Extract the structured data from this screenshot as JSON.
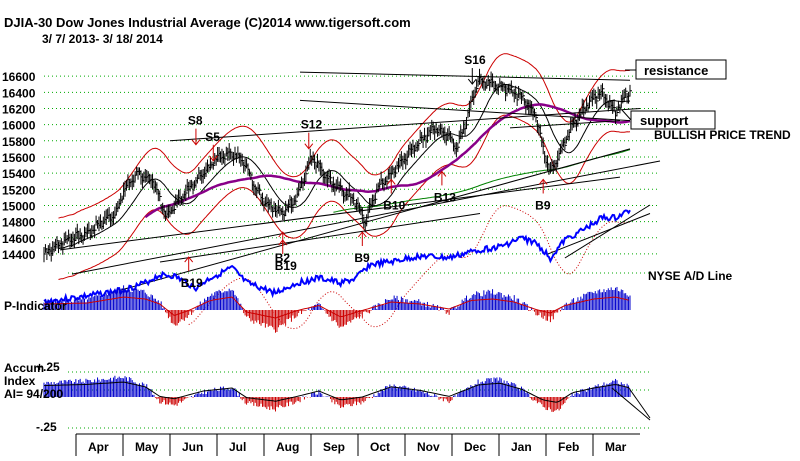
{
  "title": "DJIA-30  Dow Jones Industrial Average   (C)2014 www.tigersoft.com",
  "date_range": "3/ 7/ 2013- 3/ 18/ 2014",
  "colors": {
    "price": "#000000",
    "ad_line": "#0000ff",
    "bands": "#cc0000",
    "ma65": "#880088",
    "ma200": "#008000",
    "pos": "#0000cc",
    "neg": "#cc0000",
    "dotted": "#00aa00"
  },
  "chart_data": {
    "type": "bar",
    "price_axis": {
      "ticks": [
        "16600",
        "16400",
        "16200",
        "16000",
        "15800",
        "15600",
        "15400",
        "15200",
        "15000",
        "14800",
        "14600",
        "14400"
      ],
      "ylim": [
        14300,
        16800
      ]
    },
    "months": [
      "Apr",
      "May",
      "Jun",
      "Jul",
      "Aug",
      "Sep",
      "Oct",
      "Nov",
      "Dec",
      "Jan",
      "Feb",
      "Mar"
    ],
    "close_path": [
      [
        0,
        14400
      ],
      [
        10,
        14520
      ],
      [
        20,
        14600
      ],
      [
        30,
        14650
      ],
      [
        40,
        14800
      ],
      [
        50,
        14900
      ],
      [
        55,
        15200
      ],
      [
        65,
        15400
      ],
      [
        75,
        15300
      ],
      [
        85,
        14850
      ],
      [
        90,
        15000
      ],
      [
        100,
        15200
      ],
      [
        110,
        15400
      ],
      [
        120,
        15600
      ],
      [
        130,
        15650
      ],
      [
        138,
        15550
      ],
      [
        145,
        15250
      ],
      [
        155,
        15000
      ],
      [
        165,
        14900
      ],
      [
        175,
        15100
      ],
      [
        185,
        15600
      ],
      [
        195,
        15350
      ],
      [
        205,
        15200
      ],
      [
        215,
        15050
      ],
      [
        222,
        14800
      ],
      [
        230,
        15200
      ],
      [
        240,
        15400
      ],
      [
        250,
        15600
      ],
      [
        260,
        15800
      ],
      [
        270,
        15950
      ],
      [
        280,
        15850
      ],
      [
        285,
        15700
      ],
      [
        292,
        16050
      ],
      [
        300,
        16550
      ],
      [
        310,
        16500
      ],
      [
        320,
        16450
      ],
      [
        330,
        16350
      ],
      [
        340,
        16100
      ],
      [
        345,
        15700
      ],
      [
        350,
        15400
      ],
      [
        355,
        15600
      ],
      [
        365,
        16000
      ],
      [
        375,
        16250
      ],
      [
        385,
        16400
      ],
      [
        395,
        16150
      ],
      [
        400,
        16300
      ],
      [
        402,
        16400
      ]
    ],
    "annotations": [
      {
        "text": "S16",
        "x": 296,
        "price": 16750,
        "kind": "sell"
      },
      {
        "text": "S8",
        "x": 105,
        "price": 16000,
        "kind": "sell"
      },
      {
        "text": "S5",
        "x": 117,
        "price": 15800,
        "kind": "sell"
      },
      {
        "text": "S12",
        "x": 183,
        "price": 15950,
        "kind": "sell"
      },
      {
        "text": "B10",
        "x": 240,
        "price": 14950,
        "kind": "buy"
      },
      {
        "text": "B13",
        "x": 275,
        "price": 15050,
        "kind": "buy"
      },
      {
        "text": "B9",
        "x": 345,
        "price": 14950,
        "kind": "buy"
      },
      {
        "text": "B9",
        "x": 220,
        "price": 14300,
        "kind": "buy"
      },
      {
        "text": "B2",
        "x": 165,
        "price": 14300,
        "kind": "buy"
      },
      {
        "text": "B19",
        "x": 165,
        "price": 14200,
        "kind": "buy"
      },
      {
        "text": "B19",
        "x": 100,
        "price": 13990,
        "kind": "buy"
      }
    ],
    "labels": {
      "resistance": "resistance",
      "support": "support",
      "trend": "BULLISH PRICE TREND",
      "ad_line": "NYSE A/D Line",
      "p_indicator": "P-Indicator",
      "accum_title_1": "Accum",
      "accum_title_2": "Index",
      "ai_value": "AI= 94/200",
      "accum_top": "+.25",
      "accum_bottom": "-.25"
    }
  }
}
